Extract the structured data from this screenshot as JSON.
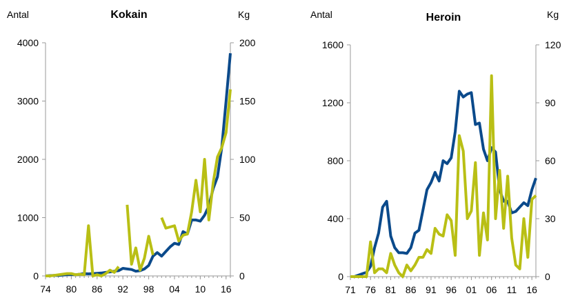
{
  "colors": {
    "count_series": "#0b4a8b",
    "weight_series": "#b9bf15",
    "axis": "#9a9a9a"
  },
  "chart_data": [
    {
      "type": "line",
      "title": "Kokain",
      "left_unit": "Antal",
      "right_unit": "Kg",
      "left_ticks": [
        "0",
        "1000",
        "2000",
        "3000",
        "4000"
      ],
      "right_ticks": [
        "0",
        "50",
        "100",
        "150",
        "200"
      ],
      "x_tick_labels": [
        "74",
        "80",
        "86",
        "92",
        "98",
        "04",
        "10",
        "16"
      ],
      "xlim": [
        1974,
        2017
      ],
      "ylim_left": [
        0,
        4000
      ],
      "ylim_right": [
        0,
        200
      ],
      "series": [
        {
          "axis": "left",
          "x": [
            1974,
            1975,
            1976,
            1977,
            1978,
            1979,
            1980,
            1981,
            1982,
            1983,
            1984,
            1985,
            1986,
            1987,
            1988,
            1989,
            1990,
            1991,
            1992,
            1993,
            1994,
            1995,
            1996,
            1997,
            1998,
            1999,
            2000,
            2001,
            2002,
            2003,
            2004,
            2005,
            2006,
            2007,
            2008,
            2009,
            2010,
            2011,
            2012,
            2013,
            2014,
            2015,
            2016,
            2017
          ],
          "y": [
            0,
            5,
            10,
            10,
            15,
            20,
            25,
            20,
            30,
            40,
            35,
            40,
            45,
            50,
            60,
            70,
            80,
            90,
            130,
            120,
            110,
            80,
            90,
            120,
            180,
            340,
            400,
            340,
            420,
            500,
            560,
            540,
            760,
            720,
            960,
            960,
            940,
            1040,
            1200,
            1500,
            1700,
            2200,
            3000,
            3820
          ]
        },
        {
          "axis": "right",
          "x": [
            1974,
            1975,
            1976,
            1977,
            1978,
            1979,
            1980,
            1981,
            1982,
            1983,
            1984,
            1985,
            1986,
            1987,
            1988,
            1989,
            1990,
            1991,
            1992,
            1993,
            1994,
            1995,
            1996,
            1997,
            1998,
            1999,
            2000,
            2001,
            2002,
            2003,
            2004,
            2005,
            2006,
            2007,
            2008,
            2009,
            2010,
            2011,
            2012,
            2013,
            2014,
            2015,
            2016,
            2017
          ],
          "y": [
            0,
            0,
            0.5,
            1,
            1.5,
            2,
            2,
            1,
            1.5,
            1,
            43,
            0,
            1,
            0,
            2,
            5,
            3,
            8,
            null,
            61,
            10,
            24,
            5,
            15,
            34,
            18,
            null,
            50,
            41,
            42,
            43,
            30,
            35,
            36,
            55,
            82,
            55,
            100,
            48,
            80,
            102,
            110,
            123,
            160
          ]
        }
      ]
    },
    {
      "type": "line",
      "title": "Heroin",
      "left_unit": "Antal",
      "right_unit": "Kg",
      "left_ticks": [
        "0",
        "400",
        "800",
        "1200",
        "1600"
      ],
      "right_ticks": [
        "0",
        "30",
        "60",
        "90",
        "120"
      ],
      "x_tick_labels": [
        "71",
        "76",
        "81",
        "86",
        "91",
        "96",
        "01",
        "06",
        "11",
        "16"
      ],
      "xlim": [
        1971,
        2017
      ],
      "ylim_left": [
        0,
        1600
      ],
      "ylim_right": [
        0,
        120
      ],
      "series": [
        {
          "axis": "left",
          "x": [
            1971,
            1972,
            1973,
            1974,
            1975,
            1976,
            1977,
            1978,
            1979,
            1980,
            1981,
            1982,
            1983,
            1984,
            1985,
            1986,
            1987,
            1988,
            1989,
            1990,
            1991,
            1992,
            1993,
            1994,
            1995,
            1996,
            1997,
            1998,
            1999,
            2000,
            2001,
            2002,
            2003,
            2004,
            2005,
            2006,
            2007,
            2008,
            2009,
            2010,
            2011,
            2012,
            2013,
            2014,
            2015,
            2016,
            2017
          ],
          "y": [
            0,
            0,
            10,
            20,
            30,
            70,
            200,
            300,
            480,
            520,
            280,
            200,
            165,
            165,
            160,
            200,
            300,
            320,
            460,
            600,
            650,
            720,
            660,
            800,
            780,
            820,
            1000,
            1280,
            1240,
            1260,
            1270,
            1050,
            1060,
            880,
            800,
            890,
            860,
            600,
            520,
            520,
            440,
            450,
            480,
            510,
            490,
            600,
            680
          ]
        },
        {
          "axis": "right",
          "x": [
            1971,
            1972,
            1973,
            1974,
            1975,
            1976,
            1977,
            1978,
            1979,
            1980,
            1981,
            1982,
            1983,
            1984,
            1985,
            1986,
            1987,
            1988,
            1989,
            1990,
            1991,
            1992,
            1993,
            1994,
            1995,
            1996,
            1997,
            1998,
            1999,
            2000,
            2001,
            2002,
            2003,
            2004,
            2005,
            2006,
            2007,
            2008,
            2009,
            2010,
            2011,
            2012,
            2013,
            2014,
            2015,
            2016,
            2017
          ],
          "y": [
            0,
            0,
            0,
            0,
            0,
            18,
            2,
            4,
            4,
            2,
            12,
            6,
            2,
            0,
            6,
            3,
            6,
            10,
            10,
            14,
            12,
            25,
            22,
            21,
            32,
            29,
            11,
            73,
            65,
            30,
            34,
            59,
            11,
            33,
            19,
            104,
            30,
            55,
            25,
            52,
            20,
            6,
            4,
            30,
            10,
            40,
            42
          ]
        }
      ]
    }
  ]
}
